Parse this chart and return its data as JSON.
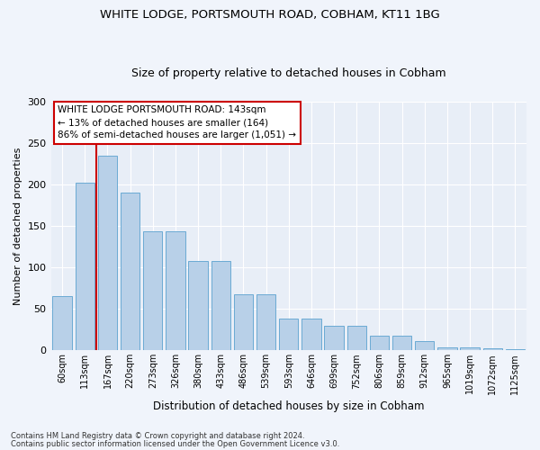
{
  "title1": "WHITE LODGE, PORTSMOUTH ROAD, COBHAM, KT11 1BG",
  "title2": "Size of property relative to detached houses in Cobham",
  "xlabel": "Distribution of detached houses by size in Cobham",
  "ylabel": "Number of detached properties",
  "categories": [
    "60sqm",
    "113sqm",
    "167sqm",
    "220sqm",
    "273sqm",
    "326sqm",
    "380sqm",
    "433sqm",
    "486sqm",
    "539sqm",
    "593sqm",
    "646sqm",
    "699sqm",
    "752sqm",
    "806sqm",
    "859sqm",
    "912sqm",
    "965sqm",
    "1019sqm",
    "1072sqm",
    "1125sqm"
  ],
  "values": [
    65,
    202,
    235,
    191,
    144,
    144,
    108,
    108,
    68,
    68,
    38,
    38,
    30,
    30,
    18,
    18,
    11,
    4,
    4,
    3,
    1
  ],
  "bar_color": "#b8d0e8",
  "bar_edge_color": "#6aaad4",
  "annotation_text1": "WHITE LODGE PORTSMOUTH ROAD: 143sqm",
  "annotation_text2": "← 13% of detached houses are smaller (164)",
  "annotation_text3": "86% of semi-detached houses are larger (1,051) →",
  "annotation_box_color": "#ffffff",
  "annotation_box_edge": "#cc0000",
  "vline_color": "#cc0000",
  "ylim": [
    0,
    300
  ],
  "yticks": [
    0,
    50,
    100,
    150,
    200,
    250,
    300
  ],
  "footnote1": "Contains HM Land Registry data © Crown copyright and database right 2024.",
  "footnote2": "Contains public sector information licensed under the Open Government Licence v3.0.",
  "fig_bg_color": "#f0f4fb",
  "plot_bg_color": "#e8eef7"
}
